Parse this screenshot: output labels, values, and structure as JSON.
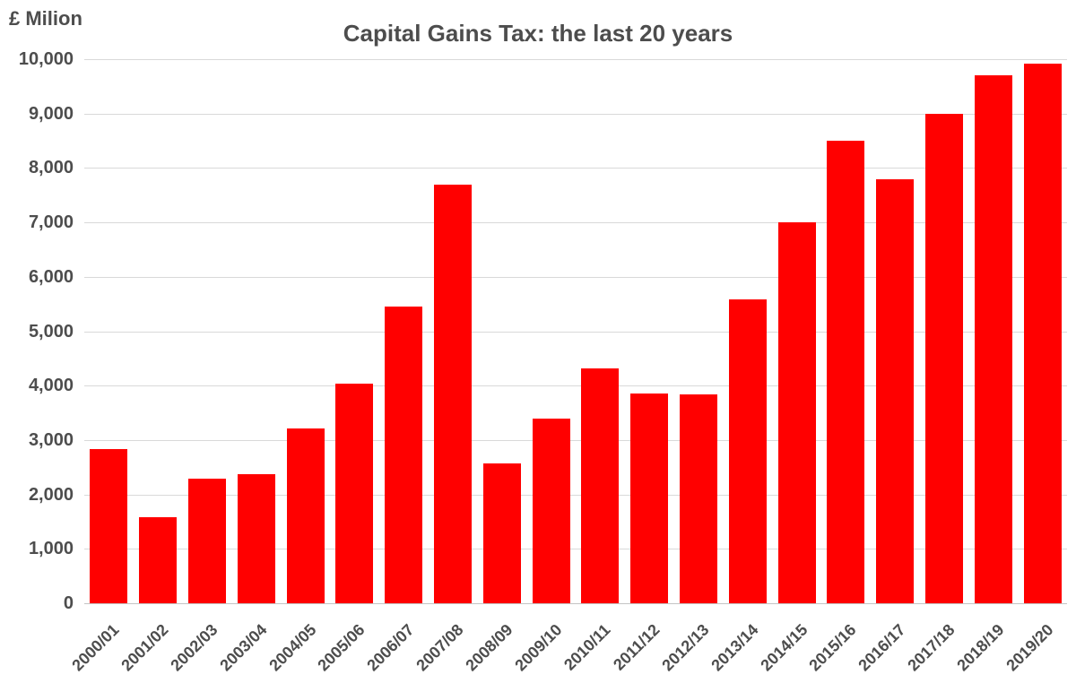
{
  "chart_data": {
    "type": "bar",
    "title": "Capital Gains Tax: the last 20 years",
    "ylabel": "£ Milion",
    "xlabel": "",
    "categories": [
      "2000/01",
      "2001/02",
      "2002/03",
      "2003/04",
      "2004/05",
      "2005/06",
      "2006/07",
      "2007/08",
      "2008/09",
      "2009/10",
      "2010/11",
      "2011/12",
      "2012/13",
      "2013/14",
      "2014/15",
      "2015/16",
      "2016/17",
      "2017/18",
      "2018/19",
      "2019/20"
    ],
    "values": [
      2830,
      1580,
      2290,
      2380,
      3220,
      4030,
      5450,
      7690,
      2570,
      3400,
      4310,
      3850,
      3840,
      5580,
      7000,
      8500,
      7790,
      9000,
      9700,
      9920
    ],
    "ylim": [
      0,
      10000
    ],
    "ytick_interval": 1000,
    "ytick_labels": [
      "0",
      "1,000",
      "2,000",
      "3,000",
      "4,000",
      "5,000",
      "6,000",
      "7,000",
      "8,000",
      "9,000",
      "10,000"
    ],
    "grid": true,
    "legend": false,
    "colors": {
      "bar": "#ff0000",
      "gridline": "#d9d9d9",
      "axis_line": "#c4c4c4",
      "text": "#4d4d4d"
    }
  }
}
